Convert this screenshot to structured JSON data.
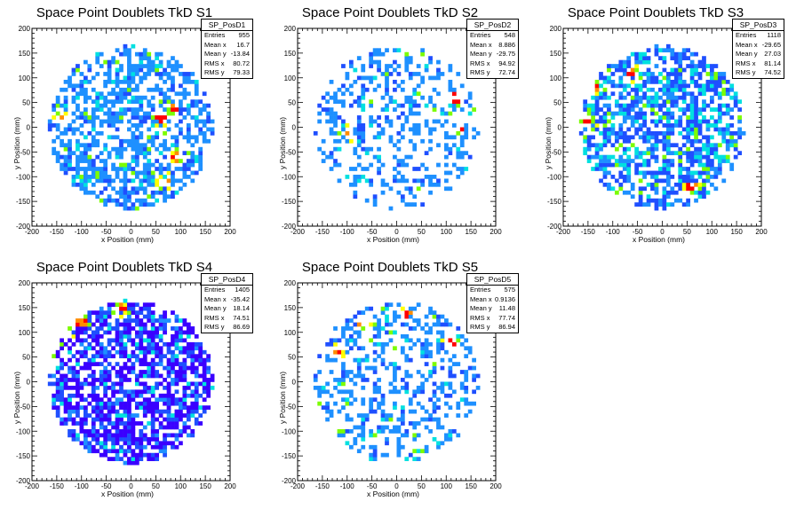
{
  "colors": {
    "palette": [
      "#3a00ff",
      "#1f4fff",
      "#1e90ff",
      "#00e0e0",
      "#7cfc00",
      "#ffff00",
      "#ff8c00",
      "#ff0000"
    ],
    "axis": "#000000",
    "background": "#ffffff"
  },
  "chart_data": [
    {
      "type": "heatmap",
      "title": "Space Point Doublets TkD S1",
      "xlabel": "x Position (mm)",
      "ylabel": "y Position (mm)",
      "xlim": [
        -200,
        200
      ],
      "ylim": [
        -200,
        200
      ],
      "xticks": [
        "-200",
        "-150",
        "-100",
        "-50",
        "0",
        "50",
        "100",
        "150",
        "200"
      ],
      "yticks": [
        "-200",
        "-150",
        "-100",
        "-50",
        "0",
        "50",
        "100",
        "150",
        "200"
      ],
      "bin_width": 8,
      "circle_radius": 165,
      "occupancy": 0.52,
      "hot_spots": [
        [
          90,
          40
        ],
        [
          -140,
          20
        ],
        [
          60,
          20
        ],
        [
          70,
          -110
        ],
        [
          90,
          -60
        ]
      ],
      "stats": {
        "name": "SP_PosD1",
        "rows": [
          {
            "label": "Entries",
            "value": "955"
          },
          {
            "label": "Mean x",
            "value": "16.7"
          },
          {
            "label": "Mean y",
            "value": "-13.84"
          },
          {
            "label": "RMS x",
            "value": "80.72"
          },
          {
            "label": "RMS y",
            "value": "79.33"
          }
        ]
      }
    },
    {
      "type": "heatmap",
      "title": "Space Point Doublets TkD S2",
      "xlabel": "x Position (mm)",
      "ylabel": "y Position (mm)",
      "xlim": [
        -200,
        200
      ],
      "ylim": [
        -200,
        200
      ],
      "xticks": [
        "-200",
        "-150",
        "-100",
        "-50",
        "0",
        "50",
        "100",
        "150",
        "200"
      ],
      "yticks": [
        "-200",
        "-150",
        "-100",
        "-50",
        "0",
        "50",
        "100",
        "150",
        "200"
      ],
      "bin_width": 8,
      "circle_radius": 165,
      "occupancy": 0.33,
      "hot_spots": [
        [
          130,
          0
        ],
        [
          -160,
          0
        ],
        [
          -100,
          -10
        ],
        [
          120,
          60
        ]
      ],
      "stats": {
        "name": "SP_PosD2",
        "rows": [
          {
            "label": "Entries",
            "value": "548"
          },
          {
            "label": "Mean x",
            "value": "8.886"
          },
          {
            "label": "Mean y",
            "value": "-29.75"
          },
          {
            "label": "RMS x",
            "value": "94.92"
          },
          {
            "label": "RMS y",
            "value": "72.74"
          }
        ]
      }
    },
    {
      "type": "heatmap",
      "title": "Space Point Doublets TkD S3",
      "xlabel": "x Position (mm)",
      "ylabel": "y Position (mm)",
      "xlim": [
        -200,
        200
      ],
      "ylim": [
        -200,
        200
      ],
      "xticks": [
        "-200",
        "-150",
        "-100",
        "-50",
        "0",
        "50",
        "100",
        "150",
        "200"
      ],
      "yticks": [
        "-200",
        "-150",
        "-100",
        "-50",
        "0",
        "50",
        "100",
        "150",
        "200"
      ],
      "bin_width": 8,
      "circle_radius": 165,
      "occupancy": 0.62,
      "hot_spots": [
        [
          -140,
          80
        ],
        [
          -150,
          10
        ],
        [
          -60,
          110
        ],
        [
          60,
          -120
        ]
      ],
      "stats": {
        "name": "SP_PosD3",
        "rows": [
          {
            "label": "Entries",
            "value": "1118"
          },
          {
            "label": "Mean x",
            "value": "-29.65"
          },
          {
            "label": "Mean y",
            "value": "27.03"
          },
          {
            "label": "RMS x",
            "value": "81.14"
          },
          {
            "label": "RMS y",
            "value": "74.52"
          }
        ]
      }
    },
    {
      "type": "heatmap",
      "title": "Space Point Doublets TkD S4",
      "xlabel": "x Position (mm)",
      "ylabel": "y Position (mm)",
      "xlim": [
        -200,
        200
      ],
      "ylim": [
        -200,
        200
      ],
      "xticks": [
        "-200",
        "-150",
        "-100",
        "-50",
        "0",
        "50",
        "100",
        "150",
        "200"
      ],
      "yticks": [
        "-200",
        "-150",
        "-100",
        "-50",
        "0",
        "50",
        "100",
        "150",
        "200"
      ],
      "bin_width": 8,
      "circle_radius": 165,
      "occupancy": 0.68,
      "hot_spots": [
        [
          -150,
          70
        ],
        [
          -130,
          100
        ],
        [
          -20,
          150
        ],
        [
          -100,
          120
        ]
      ],
      "stats": {
        "name": "SP_PosD4",
        "rows": [
          {
            "label": "Entries",
            "value": "1405"
          },
          {
            "label": "Mean x",
            "value": "-35.42"
          },
          {
            "label": "Mean y",
            "value": "18.14"
          },
          {
            "label": "RMS x",
            "value": "74.51"
          },
          {
            "label": "RMS y",
            "value": "86.69"
          }
        ]
      }
    },
    {
      "type": "heatmap",
      "title": "Space Point Doublets TkD S5",
      "xlabel": "x Position (mm)",
      "ylabel": "y Position (mm)",
      "xlim": [
        -200,
        200
      ],
      "ylim": [
        -200,
        200
      ],
      "xticks": [
        "-200",
        "-150",
        "-100",
        "-50",
        "0",
        "50",
        "100",
        "150",
        "200"
      ],
      "yticks": [
        "-200",
        "-150",
        "-100",
        "-50",
        "0",
        "50",
        "100",
        "150",
        "200"
      ],
      "bin_width": 8,
      "circle_radius": 165,
      "occupancy": 0.36,
      "hot_spots": [
        [
          20,
          140
        ],
        [
          -70,
          120
        ],
        [
          -120,
          60
        ],
        [
          110,
          80
        ]
      ],
      "stats": {
        "name": "SP_PosD5",
        "rows": [
          {
            "label": "Entries",
            "value": "575"
          },
          {
            "label": "Mean x",
            "value": "0.9136"
          },
          {
            "label": "Mean y",
            "value": "11.48"
          },
          {
            "label": "RMS x",
            "value": "77.74"
          },
          {
            "label": "RMS y",
            "value": "86.94"
          }
        ]
      }
    }
  ]
}
